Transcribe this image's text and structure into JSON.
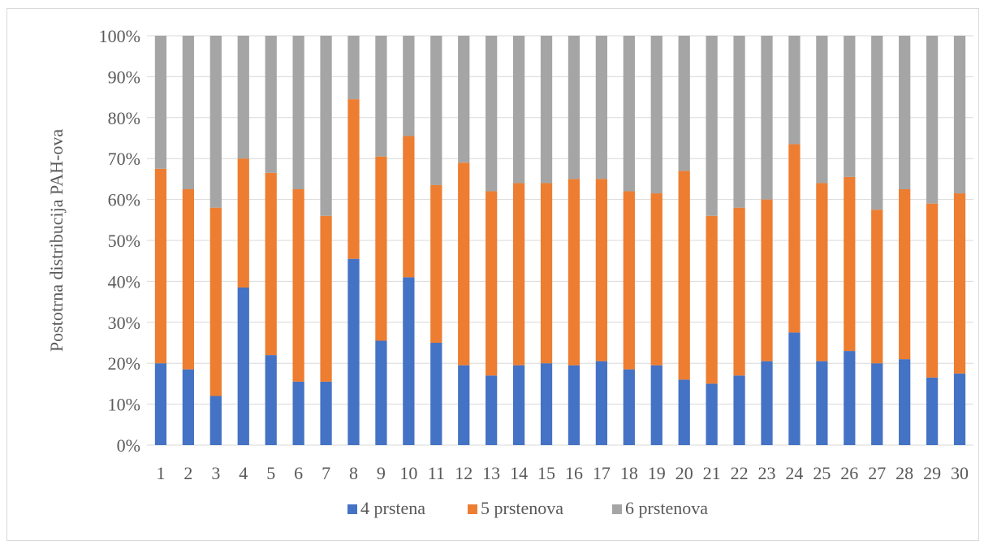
{
  "chart_data": {
    "type": "bar",
    "stacked": true,
    "normalized": true,
    "title": "",
    "xlabel": "",
    "ylabel": "Postotrna distribucija PAH-ova",
    "ylim": [
      0,
      100
    ],
    "y_ticks": [
      "0%",
      "10%",
      "20%",
      "30%",
      "40%",
      "50%",
      "60%",
      "70%",
      "80%",
      "90%",
      "100%"
    ],
    "grid": true,
    "legend_position": "bottom",
    "categories": [
      "1",
      "2",
      "3",
      "4",
      "5",
      "6",
      "7",
      "8",
      "9",
      "10",
      "11",
      "12",
      "13",
      "14",
      "15",
      "16",
      "17",
      "18",
      "19",
      "20",
      "21",
      "22",
      "23",
      "24",
      "25",
      "26",
      "27",
      "28",
      "29",
      "30"
    ],
    "series": [
      {
        "name": "4 prstena",
        "color": "#4472c4",
        "values": [
          20,
          18.5,
          12,
          38.5,
          22,
          15.5,
          15.5,
          45.5,
          25.5,
          41,
          25,
          19.5,
          17,
          19.5,
          20,
          19.5,
          20.5,
          18.5,
          19.5,
          16,
          15,
          17,
          20.5,
          27.5,
          20.5,
          23,
          20,
          21,
          16.5,
          17.5
        ]
      },
      {
        "name": "5 prstenova",
        "color": "#ed7d31",
        "values": [
          47.5,
          44,
          46,
          31.5,
          44.5,
          47,
          40.5,
          39,
          45,
          34.5,
          38.5,
          49.5,
          45,
          44.5,
          44,
          45.5,
          44.5,
          43.5,
          42,
          51,
          41,
          41,
          39.5,
          46,
          43.5,
          42.5,
          37.5,
          41.5,
          42.5,
          44
        ]
      },
      {
        "name": "6 prstenova",
        "color": "#a5a5a5",
        "values": [
          32.5,
          37.5,
          42,
          30,
          33.5,
          37.5,
          44,
          15.5,
          29.5,
          24.5,
          36.5,
          31,
          38,
          36,
          36,
          35,
          35,
          38,
          38.5,
          33,
          44,
          42,
          40,
          26.5,
          36,
          34.5,
          42.5,
          37.5,
          41,
          38.5
        ]
      }
    ]
  }
}
